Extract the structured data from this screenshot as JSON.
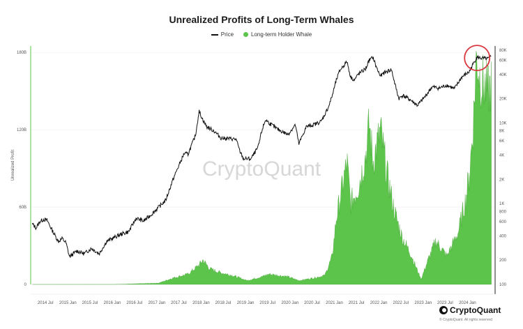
{
  "chart_data": {
    "type": "area",
    "title": "Unrealized Profits of Long-Term Whales",
    "ylabel": "Unrealized Profit",
    "legend": [
      "Price",
      "Long-term Holder Whale"
    ],
    "legend_position": "top-center",
    "grid": true,
    "watermark": "CryptoQuant",
    "brand": "CryptoQuant",
    "copyright": "© CryptoQuant. All rights reserved",
    "colors": {
      "price": "#111111",
      "whale": "#5cc44a",
      "highlight": "#d9363e"
    },
    "x_ticks": [
      "2014 Jul",
      "2015 Jan",
      "2015 Jul",
      "2016 Jan",
      "2016 Jul",
      "2017 Jan",
      "2017 Jul",
      "2018 Jan",
      "2018 Jul",
      "2019 Jan",
      "2019 Jul",
      "2020 Jan",
      "2020 Jul",
      "2021 Jan",
      "2021 Jul",
      "2022 Jan",
      "2022 Jul",
      "2023 Jan",
      "2023 Jul",
      "2024 Jan"
    ],
    "y_left": {
      "ticks": [
        "0",
        "60B",
        "120B",
        "180B"
      ],
      "values": [
        0,
        60,
        120,
        180
      ],
      "range": [
        0,
        185
      ],
      "unit": "B"
    },
    "y_right": {
      "scale": "log",
      "ticks": [
        "80K",
        "60K",
        "40K",
        "20K",
        "10K",
        "8K",
        "6K",
        "4K",
        "2K",
        "1K",
        "800",
        "600",
        "400",
        "200",
        "100"
      ],
      "values": [
        80000,
        60000,
        40000,
        20000,
        10000,
        8000,
        6000,
        4000,
        2000,
        1000,
        800,
        600,
        400,
        200,
        100
      ],
      "range": [
        100,
        90000
      ]
    },
    "series": [
      {
        "name": "Price",
        "axis": "right",
        "x": [
          "2014-03",
          "2014-04",
          "2014-05",
          "2014-06",
          "2014-07",
          "2014-08",
          "2014-09",
          "2014-10",
          "2014-11",
          "2014-12",
          "2015-01",
          "2015-02",
          "2015-03",
          "2015-05",
          "2015-07",
          "2015-09",
          "2015-11",
          "2016-01",
          "2016-03",
          "2016-05",
          "2016-07",
          "2016-09",
          "2016-11",
          "2017-01",
          "2017-03",
          "2017-05",
          "2017-06",
          "2017-08",
          "2017-09",
          "2017-11",
          "2017-12",
          "2018-01",
          "2018-02",
          "2018-04",
          "2018-06",
          "2018-08",
          "2018-10",
          "2018-11",
          "2018-12",
          "2019-02",
          "2019-04",
          "2019-05",
          "2019-06",
          "2019-07",
          "2019-09",
          "2019-11",
          "2019-12",
          "2020-02",
          "2020-03",
          "2020-05",
          "2020-07",
          "2020-09",
          "2020-11",
          "2020-12",
          "2021-01",
          "2021-02",
          "2021-04",
          "2021-05",
          "2021-06",
          "2021-07",
          "2021-09",
          "2021-10",
          "2021-11",
          "2021-12",
          "2022-01",
          "2022-02",
          "2022-04",
          "2022-05",
          "2022-06",
          "2022-07",
          "2022-09",
          "2022-11",
          "2023-01",
          "2023-03",
          "2023-05",
          "2023-07",
          "2023-09",
          "2023-11",
          "2024-01",
          "2024-03",
          "2024-04",
          "2024-06",
          "2024-07"
        ],
        "values": [
          560,
          500,
          600,
          640,
          620,
          500,
          410,
          340,
          370,
          330,
          220,
          240,
          260,
          240,
          280,
          240,
          340,
          380,
          420,
          450,
          660,
          610,
          730,
          900,
          1100,
          2000,
          2600,
          4200,
          4100,
          7000,
          14000,
          11000,
          9000,
          8000,
          6500,
          6400,
          6300,
          4500,
          3600,
          3600,
          5000,
          8000,
          11000,
          10000,
          8500,
          7600,
          7200,
          9500,
          5500,
          9000,
          9500,
          10500,
          16000,
          22000,
          33000,
          45000,
          58000,
          37000,
          34000,
          40000,
          47000,
          60000,
          65000,
          48000,
          38000,
          42000,
          46000,
          30000,
          20000,
          22000,
          19500,
          16500,
          21000,
          28000,
          27000,
          29500,
          26500,
          37000,
          43000,
          65000,
          64000,
          62000,
          67000
        ]
      },
      {
        "name": "Long-term Holder Whale",
        "axis": "left",
        "x": [
          "2014-03",
          "2015-01",
          "2016-01",
          "2017-01",
          "2017-05",
          "2017-09",
          "2017-12",
          "2018-01",
          "2018-03",
          "2018-06",
          "2018-09",
          "2019-01",
          "2019-05",
          "2019-07",
          "2019-12",
          "2020-03",
          "2020-07",
          "2020-10",
          "2020-12",
          "2021-01",
          "2021-03",
          "2021-04",
          "2021-05",
          "2021-07",
          "2021-09",
          "2021-10",
          "2021-11",
          "2022-01",
          "2022-03",
          "2022-05",
          "2022-07",
          "2022-09",
          "2022-12",
          "2023-02",
          "2023-04",
          "2023-07",
          "2023-10",
          "2023-12",
          "2024-01",
          "2024-02",
          "2024-03",
          "2024-04",
          "2024-06",
          "2024-07"
        ],
        "values": [
          0,
          0,
          0,
          1,
          5,
          8,
          15,
          19,
          12,
          9,
          7,
          3,
          6,
          8,
          6,
          3,
          5,
          7,
          22,
          50,
          80,
          95,
          63,
          75,
          100,
          125,
          95,
          120,
          83,
          55,
          36,
          25,
          4,
          20,
          34,
          22,
          40,
          65,
          85,
          120,
          178,
          160,
          150,
          155
        ]
      }
    ]
  }
}
